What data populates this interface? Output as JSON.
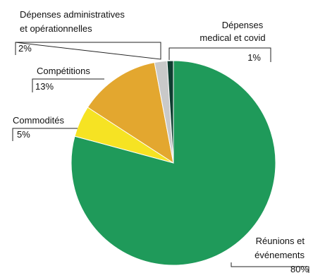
{
  "chart_data": {
    "type": "pie",
    "title": "",
    "unit": "%",
    "colors": {
      "reunions": "#1f9a5a",
      "commodites": "#f6e323",
      "competitions": "#e3a72f",
      "administratives": "#c9c9c9",
      "medical": "#0f3d30"
    },
    "slices": [
      {
        "key": "reunions",
        "name": "Réunions et événements",
        "name_lines": [
          "Réunions et",
          "événements"
        ],
        "value": 80,
        "value_label": "80%"
      },
      {
        "key": "commodites",
        "name": "Commodités",
        "name_lines": [
          "Commodités"
        ],
        "value": 5,
        "value_label": "5%"
      },
      {
        "key": "competitions",
        "name": "Compétitions",
        "name_lines": [
          "Compétitions"
        ],
        "value": 13,
        "value_label": "13%"
      },
      {
        "key": "administratives",
        "name": "Dépenses administratives et opérationnelles",
        "name_lines": [
          "Dépenses administratives",
          "et opérationnelles"
        ],
        "value": 2,
        "value_label": "2%"
      },
      {
        "key": "medical",
        "name": "Dépenses medical et covid",
        "name_lines": [
          "Dépenses",
          "medical et covid"
        ],
        "value": 1,
        "value_label": "1%"
      }
    ]
  }
}
